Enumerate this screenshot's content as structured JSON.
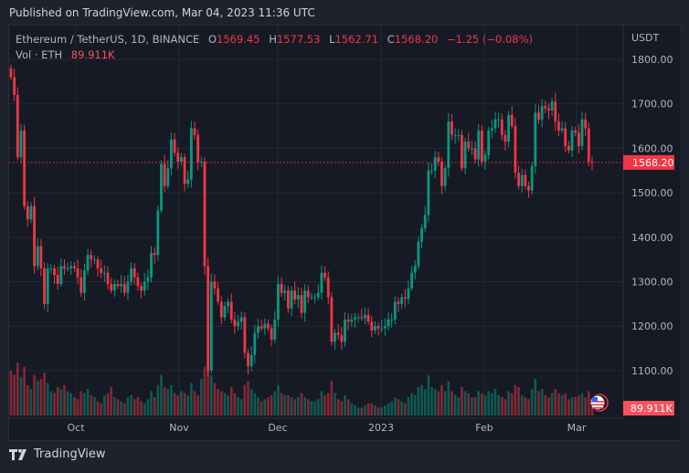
{
  "published": "Published on TradingView.com, Mar 04, 2023 11:36 UTC",
  "symbol": {
    "title": "Ethereum / TetherUS, 1D, BINANCE",
    "o_label": "O",
    "o": "1569.45",
    "h_label": "H",
    "h": "1577.53",
    "l_label": "L",
    "l": "1562.71",
    "c_label": "C",
    "c": "1568.20",
    "change": "−1.25 (−0.08%)"
  },
  "volume_legend": {
    "label": "Vol · ETH",
    "value": "89.911K"
  },
  "price_axis": {
    "currency": "USDT",
    "ticks": [
      "1800.00",
      "1700.00",
      "1600.00",
      "1500.00",
      "1400.00",
      "1300.00",
      "1200.00",
      "1100.00"
    ],
    "last_price": "1568.20",
    "last_volume": "89.911K"
  },
  "time_axis": {
    "labels": [
      "Oct",
      "Nov",
      "Dec",
      "2023",
      "Feb",
      "Mar"
    ]
  },
  "footer": {
    "brand": "TradingView"
  },
  "colors": {
    "up": "#089981",
    "down": "#f23645",
    "background": "#161a25",
    "grid": "#242833"
  },
  "chart_data": {
    "type": "candlestick",
    "start_date": "2022-09-11",
    "interval": "1D",
    "ylim": [
      1050,
      1830
    ],
    "closes": [
      1760,
      1720,
      1580,
      1640,
      1470,
      1440,
      1470,
      1335,
      1380,
      1330,
      1250,
      1330,
      1330,
      1315,
      1295,
      1335,
      1330,
      1330,
      1335,
      1330,
      1310,
      1275,
      1325,
      1360,
      1350,
      1350,
      1330,
      1320,
      1320,
      1295,
      1280,
      1295,
      1290,
      1295,
      1275,
      1300,
      1330,
      1310,
      1290,
      1280,
      1300,
      1310,
      1365,
      1360,
      1460,
      1565,
      1515,
      1555,
      1620,
      1590,
      1570,
      1580,
      1520,
      1530,
      1645,
      1630,
      1570,
      1570,
      1335,
      1100,
      1300,
      1285,
      1255,
      1220,
      1245,
      1255,
      1215,
      1200,
      1210,
      1220,
      1140,
      1110,
      1135,
      1185,
      1200,
      1195,
      1205,
      1195,
      1170,
      1215,
      1295,
      1275,
      1280,
      1240,
      1280,
      1260,
      1270,
      1230,
      1280,
      1265,
      1265,
      1265,
      1275,
      1320,
      1310,
      1265,
      1165,
      1185,
      1180,
      1165,
      1215,
      1210,
      1215,
      1220,
      1220,
      1218,
      1225,
      1210,
      1190,
      1200,
      1195,
      1195,
      1200,
      1215,
      1215,
      1255,
      1250,
      1265,
      1262,
      1285,
      1320,
      1335,
      1390,
      1420,
      1450,
      1550,
      1550,
      1580,
      1570,
      1515,
      1555,
      1660,
      1630,
      1630,
      1630,
      1555,
      1615,
      1600,
      1600,
      1575,
      1640,
      1570,
      1585,
      1640,
      1645,
      1665,
      1665,
      1630,
      1615,
      1675,
      1650,
      1545,
      1515,
      1540,
      1515,
      1505,
      1560,
      1680,
      1665,
      1695,
      1690,
      1685,
      1705,
      1660,
      1640,
      1645,
      1605,
      1595,
      1640,
      1635,
      1605,
      1665,
      1645,
      1570,
      1568.2
    ],
    "first_open": 1780,
    "volumes_k": [
      220,
      200,
      260,
      190,
      240,
      150,
      130,
      200,
      170,
      180,
      210,
      160,
      120,
      110,
      140,
      130,
      150,
      120,
      110,
      90,
      80,
      120,
      110,
      130,
      100,
      90,
      70,
      60,
      100,
      110,
      140,
      90,
      80,
      70,
      60,
      90,
      100,
      80,
      90,
      70,
      60,
      80,
      120,
      90,
      150,
      200,
      140,
      130,
      150,
      110,
      100,
      120,
      110,
      100,
      160,
      120,
      100,
      180,
      240,
      270,
      200,
      160,
      130,
      120,
      110,
      100,
      140,
      110,
      90,
      80,
      150,
      170,
      130,
      110,
      90,
      70,
      80,
      90,
      100,
      120,
      150,
      110,
      100,
      100,
      90,
      80,
      90,
      110,
      90,
      80,
      70,
      70,
      80,
      120,
      100,
      110,
      170,
      110,
      80,
      70,
      100,
      80,
      60,
      50,
      40,
      40,
      50,
      60,
      60,
      50,
      40,
      40,
      50,
      60,
      70,
      90,
      80,
      70,
      60,
      90,
      110,
      100,
      140,
      150,
      130,
      200,
      140,
      130,
      120,
      150,
      120,
      170,
      120,
      100,
      90,
      140,
      120,
      110,
      90,
      90,
      120,
      110,
      100,
      120,
      110,
      130,
      100,
      90,
      80,
      120,
      110,
      150,
      140,
      100,
      90,
      80,
      130,
      180,
      120,
      130,
      100,
      90,
      110,
      130,
      110,
      100,
      110,
      80,
      90,
      90,
      100,
      110,
      90,
      120,
      89.911
    ]
  }
}
